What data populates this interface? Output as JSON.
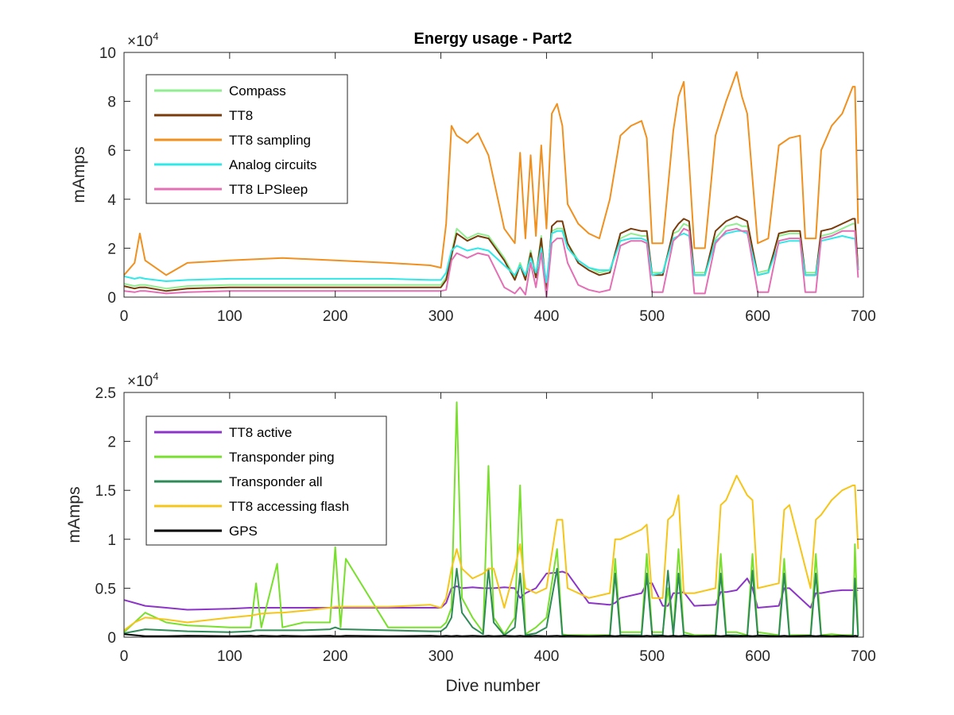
{
  "figure": {
    "title": "Energy usage - Part2",
    "background": "#ffffff"
  },
  "chart_data": [
    {
      "type": "line",
      "title": "Energy usage - Part2",
      "xlabel": "",
      "ylabel": "mAmps",
      "xlim": [
        0,
        700
      ],
      "ylim": [
        0,
        100000
      ],
      "xticks": [
        0,
        100,
        200,
        300,
        400,
        500,
        600,
        700
      ],
      "yticks": [
        0,
        20000,
        40000,
        60000,
        80000,
        100000
      ],
      "ytick_labels": [
        "0",
        "2",
        "4",
        "6",
        "8",
        "10"
      ],
      "exponent_label": "×10",
      "exponent_power": "4",
      "grid": false,
      "legend_position": "top-left",
      "x": [
        0,
        10,
        15,
        20,
        40,
        60,
        100,
        150,
        200,
        250,
        290,
        300,
        305,
        310,
        315,
        325,
        335,
        345,
        360,
        370,
        375,
        380,
        385,
        390,
        395,
        400,
        405,
        410,
        415,
        420,
        430,
        440,
        450,
        460,
        470,
        480,
        490,
        495,
        500,
        510,
        520,
        525,
        530,
        535,
        540,
        550,
        560,
        570,
        580,
        585,
        590,
        600,
        610,
        620,
        630,
        640,
        645,
        650,
        655,
        660,
        670,
        680,
        690,
        692,
        695
      ],
      "series": [
        {
          "name": "Compass",
          "color": "#90ee90",
          "values": [
            5500,
            4500,
            5000,
            5000,
            3500,
            4500,
            5000,
            5000,
            5000,
            5000,
            5000,
            5000,
            8000,
            18000,
            28000,
            24000,
            26000,
            25000,
            16000,
            8000,
            14000,
            8000,
            19000,
            9000,
            25000,
            3000,
            27000,
            28000,
            28000,
            22000,
            15000,
            12000,
            10000,
            11000,
            24000,
            26000,
            25000,
            25000,
            10000,
            10000,
            26000,
            27000,
            30000,
            29000,
            10000,
            10000,
            24000,
            29000,
            30000,
            29000,
            29000,
            10000,
            11000,
            25000,
            26000,
            26000,
            10000,
            10000,
            10000,
            25000,
            26000,
            28000,
            30000,
            30000,
            12000
          ]
        },
        {
          "name": "TT8",
          "color": "#7a3b0a",
          "values": [
            4500,
            3500,
            4000,
            4000,
            2500,
            3500,
            4000,
            4000,
            4000,
            4000,
            4000,
            4000,
            7000,
            17000,
            26000,
            23000,
            25000,
            24000,
            15000,
            7000,
            13000,
            7000,
            18000,
            8000,
            24000,
            2000,
            29000,
            31000,
            31000,
            22000,
            14000,
            11000,
            9000,
            10000,
            26000,
            28000,
            27000,
            27000,
            9000,
            9000,
            27000,
            30000,
            32000,
            31000,
            9000,
            9000,
            27000,
            31000,
            33000,
            32000,
            31000,
            9000,
            10000,
            26000,
            27000,
            27000,
            9000,
            9000,
            9000,
            27000,
            28000,
            30000,
            32000,
            32000,
            11000
          ]
        },
        {
          "name": "TT8 sampling",
          "color": "#f0901e",
          "values": [
            9000,
            14000,
            26000,
            15000,
            9000,
            14000,
            15000,
            16000,
            15000,
            14000,
            13000,
            12000,
            30000,
            70000,
            66000,
            63000,
            67000,
            58000,
            28000,
            22000,
            59000,
            24000,
            58000,
            25000,
            62000,
            28000,
            75000,
            79000,
            70000,
            38000,
            30000,
            26000,
            24000,
            40000,
            66000,
            70000,
            72000,
            65000,
            22000,
            22000,
            68000,
            82000,
            88000,
            55000,
            20000,
            20000,
            66000,
            80000,
            92000,
            82000,
            75000,
            22000,
            24000,
            62000,
            65000,
            66000,
            24000,
            24000,
            24000,
            60000,
            70000,
            75000,
            86000,
            86000,
            30000
          ]
        },
        {
          "name": "Analog circuits",
          "color": "#30e8e8",
          "values": [
            8500,
            7500,
            8000,
            7500,
            6500,
            7000,
            7500,
            7500,
            7500,
            7500,
            7000,
            7000,
            10000,
            19000,
            21000,
            19000,
            20000,
            19000,
            13000,
            9000,
            13000,
            9000,
            16000,
            10000,
            20000,
            6000,
            26000,
            27000,
            27000,
            20000,
            15000,
            12000,
            11000,
            11000,
            23000,
            24000,
            24000,
            23000,
            9000,
            10000,
            24000,
            25000,
            26000,
            25000,
            9000,
            9000,
            23000,
            26000,
            27000,
            27000,
            26000,
            9000,
            10000,
            22000,
            23000,
            23000,
            9000,
            9000,
            9000,
            23000,
            24000,
            25000,
            24000,
            24000,
            11000
          ]
        },
        {
          "name": "TT8 LPSleep",
          "color": "#e36fb5",
          "values": [
            2500,
            2000,
            2500,
            2500,
            1500,
            2000,
            2500,
            2500,
            2500,
            2500,
            2500,
            2500,
            3000,
            15000,
            18000,
            16000,
            18000,
            17000,
            4000,
            1500,
            4000,
            1000,
            14000,
            4000,
            18000,
            0,
            22000,
            24000,
            24000,
            14000,
            5000,
            3000,
            2000,
            3000,
            21000,
            23000,
            23000,
            22000,
            2000,
            2000,
            23000,
            25000,
            28000,
            27000,
            1500,
            1500,
            22000,
            27000,
            28000,
            27000,
            27000,
            2000,
            2000,
            23000,
            24000,
            24000,
            2000,
            2000,
            2000,
            24000,
            25000,
            27000,
            27000,
            27000,
            8000
          ]
        }
      ]
    },
    {
      "type": "line",
      "title": "",
      "xlabel": "Dive number",
      "ylabel": "mAmps",
      "xlim": [
        0,
        700
      ],
      "ylim": [
        0,
        25000
      ],
      "xticks": [
        0,
        100,
        200,
        300,
        400,
        500,
        600,
        700
      ],
      "yticks": [
        0,
        5000,
        10000,
        15000,
        20000,
        25000
      ],
      "ytick_labels": [
        "0",
        "0.5",
        "1",
        "1.5",
        "2",
        "2.5"
      ],
      "exponent_label": "×10",
      "exponent_power": "4",
      "grid": false,
      "legend_position": "top-left",
      "x": [
        0,
        10,
        20,
        40,
        60,
        100,
        120,
        125,
        130,
        145,
        150,
        170,
        195,
        200,
        205,
        210,
        250,
        290,
        300,
        305,
        310,
        315,
        320,
        330,
        340,
        345,
        350,
        360,
        370,
        375,
        380,
        390,
        400,
        410,
        415,
        420,
        440,
        460,
        465,
        470,
        490,
        495,
        500,
        510,
        515,
        520,
        525,
        530,
        540,
        560,
        565,
        570,
        580,
        590,
        595,
        600,
        620,
        625,
        630,
        650,
        655,
        660,
        670,
        680,
        690,
        692,
        695
      ],
      "series": [
        {
          "name": "TT8 active",
          "color": "#8c35c8",
          "values": [
            3800,
            3500,
            3200,
            3000,
            2800,
            2900,
            3000,
            3000,
            3000,
            3000,
            3000,
            3000,
            3000,
            3000,
            3000,
            3000,
            3000,
            3000,
            3000,
            3500,
            5000,
            5200,
            5000,
            5100,
            5000,
            5000,
            5000,
            5100,
            5000,
            4000,
            4500,
            5000,
            6500,
            6600,
            6700,
            6500,
            3500,
            3300,
            3500,
            4000,
            4500,
            5500,
            5500,
            3200,
            3200,
            4500,
            4500,
            4600,
            3200,
            3300,
            4600,
            4600,
            4800,
            6000,
            5000,
            3000,
            3200,
            5000,
            5000,
            3000,
            4500,
            4500,
            4700,
            4800,
            4800,
            4800,
            4800
          ]
        },
        {
          "name": "Transponder ping",
          "color": "#78e02c",
          "values": [
            500,
            1500,
            2500,
            1500,
            1200,
            1000,
            1000,
            5500,
            1000,
            7500,
            1000,
            1500,
            1500,
            9200,
            1000,
            8000,
            1000,
            1000,
            1000,
            1500,
            3000,
            24000,
            4000,
            2000,
            500,
            17500,
            2000,
            300,
            2000,
            15500,
            300,
            1000,
            2000,
            9000,
            300,
            200,
            200,
            200,
            8000,
            500,
            500,
            8500,
            500,
            500,
            5000,
            500,
            9000,
            500,
            200,
            200,
            8500,
            500,
            500,
            200,
            8500,
            500,
            200,
            8000,
            200,
            200,
            8500,
            200,
            300,
            200,
            200,
            9500,
            300
          ]
        },
        {
          "name": "Transponder all",
          "color": "#2e8b57",
          "values": [
            400,
            600,
            800,
            700,
            600,
            500,
            600,
            700,
            700,
            700,
            700,
            700,
            800,
            1000,
            800,
            800,
            700,
            600,
            600,
            1000,
            2000,
            7000,
            2500,
            1000,
            300,
            7000,
            1500,
            200,
            1000,
            6500,
            200,
            400,
            1000,
            7000,
            200,
            100,
            100,
            100,
            6500,
            200,
            200,
            6500,
            200,
            200,
            6800,
            200,
            6500,
            200,
            100,
            100,
            6500,
            200,
            200,
            100,
            6800,
            200,
            100,
            6500,
            100,
            100,
            6500,
            100,
            100,
            100,
            100,
            6000,
            100
          ]
        },
        {
          "name": "TT8 accessing flash",
          "color": "#f5c518",
          "values": [
            700,
            1500,
            2000,
            1800,
            1500,
            2000,
            2200,
            2300,
            2400,
            2500,
            2500,
            2700,
            3000,
            3100,
            3100,
            3100,
            3100,
            3300,
            3000,
            4000,
            7000,
            9000,
            7000,
            6000,
            6500,
            7000,
            7000,
            3000,
            7000,
            9500,
            5000,
            4500,
            5000,
            12000,
            12000,
            5000,
            4000,
            4500,
            10000,
            10000,
            11000,
            11500,
            4000,
            4000,
            12000,
            12500,
            14500,
            4500,
            4500,
            5000,
            13500,
            14000,
            16500,
            14500,
            14000,
            5000,
            5500,
            13000,
            13500,
            5000,
            12000,
            12500,
            14000,
            15000,
            15500,
            15500,
            9000
          ]
        },
        {
          "name": "GPS",
          "color": "#000000",
          "values": [
            300,
            200,
            100,
            100,
            150,
            100,
            150,
            100,
            150,
            100,
            150,
            100,
            150,
            100,
            100,
            150,
            100,
            150,
            100,
            150,
            100,
            150,
            100,
            150,
            100,
            150,
            100,
            150,
            100,
            150,
            100,
            150,
            100,
            150,
            100,
            150,
            100,
            150,
            100,
            150,
            100,
            150,
            100,
            150,
            100,
            150,
            100,
            150,
            100,
            150,
            100,
            150,
            100,
            150,
            100,
            150,
            100,
            150,
            100,
            150,
            100,
            150,
            100,
            150,
            100,
            150,
            100
          ]
        }
      ]
    }
  ]
}
